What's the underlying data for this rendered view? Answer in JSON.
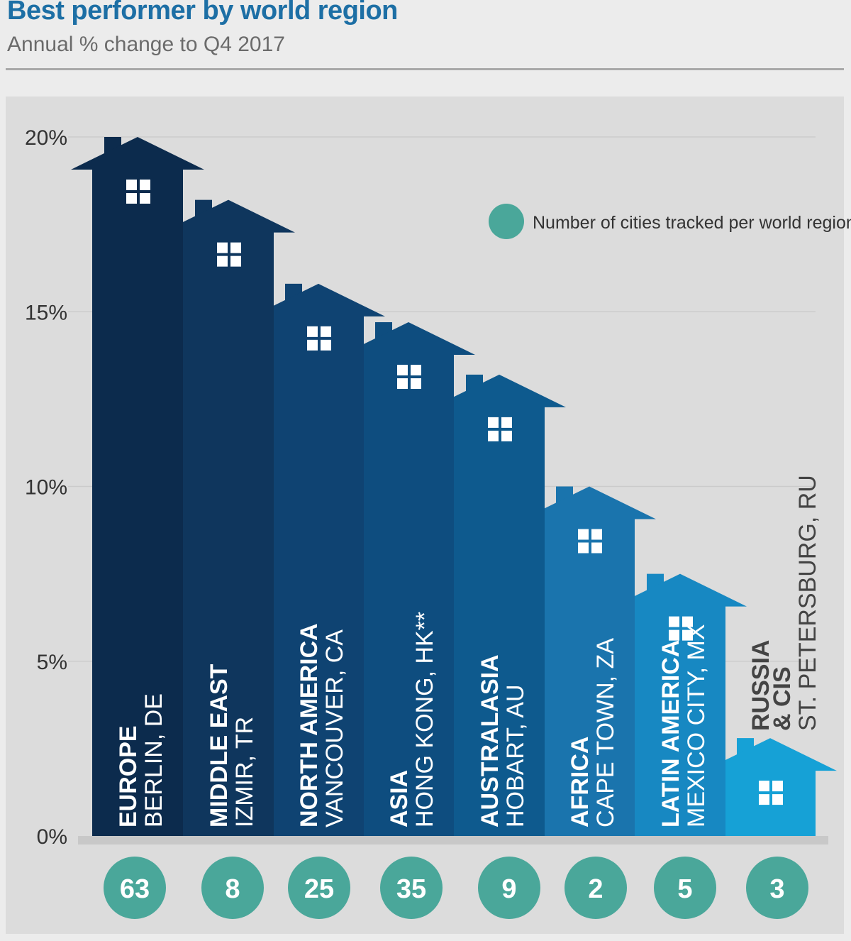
{
  "header": {
    "title": "Best performer by world region",
    "subtitle": "Annual % change to Q4 2017"
  },
  "legend": {
    "label": "Number of cities tracked per world region",
    "color": "#4aa79a"
  },
  "chart_data": {
    "type": "bar",
    "title": "Best performer by world region",
    "subtitle": "Annual % change to Q4 2017",
    "ylabel": "",
    "ylim": [
      0,
      20
    ],
    "yticks": [
      "0%",
      "5%",
      "10%",
      "15%",
      "20%"
    ],
    "yticks_values": [
      0,
      5,
      10,
      15,
      20
    ],
    "grid": true,
    "legend_position": "top-right",
    "categories": [
      "EUROPE",
      "MIDDLE EAST",
      "NORTH AMERICA",
      "ASIA",
      "AUSTRALASIA",
      "AFRICA",
      "LATIN AMERICA",
      "RUSSIA & CIS"
    ],
    "region_lines": [
      [
        "EUROPE"
      ],
      [
        "MIDDLE EAST"
      ],
      [
        "NORTH AMERICA"
      ],
      [
        "ASIA"
      ],
      [
        "AUSTRALASIA"
      ],
      [
        "AFRICA"
      ],
      [
        "LATIN AMERICA"
      ],
      [
        "RUSSIA",
        "& CIS"
      ]
    ],
    "cities": [
      "BERLIN, DE",
      "IZMIR, TR",
      "VANCOUVER, CA",
      "HONG KONG, HK**",
      "HOBART, AU",
      "CAPE TOWN, ZA",
      "MEXICO CITY, MX",
      "ST. PETERSBURG, RU"
    ],
    "values": [
      20.0,
      18.2,
      15.8,
      14.7,
      13.2,
      10.0,
      7.5,
      2.8
    ],
    "city_counts": [
      63,
      8,
      25,
      35,
      9,
      2,
      5,
      3
    ],
    "colors": [
      "#0c2b4d",
      "#0f365d",
      "#0f4372",
      "#0e4d7f",
      "#0e5a8e",
      "#1a74ad",
      "#1788c2",
      "#16a1d6"
    ]
  }
}
